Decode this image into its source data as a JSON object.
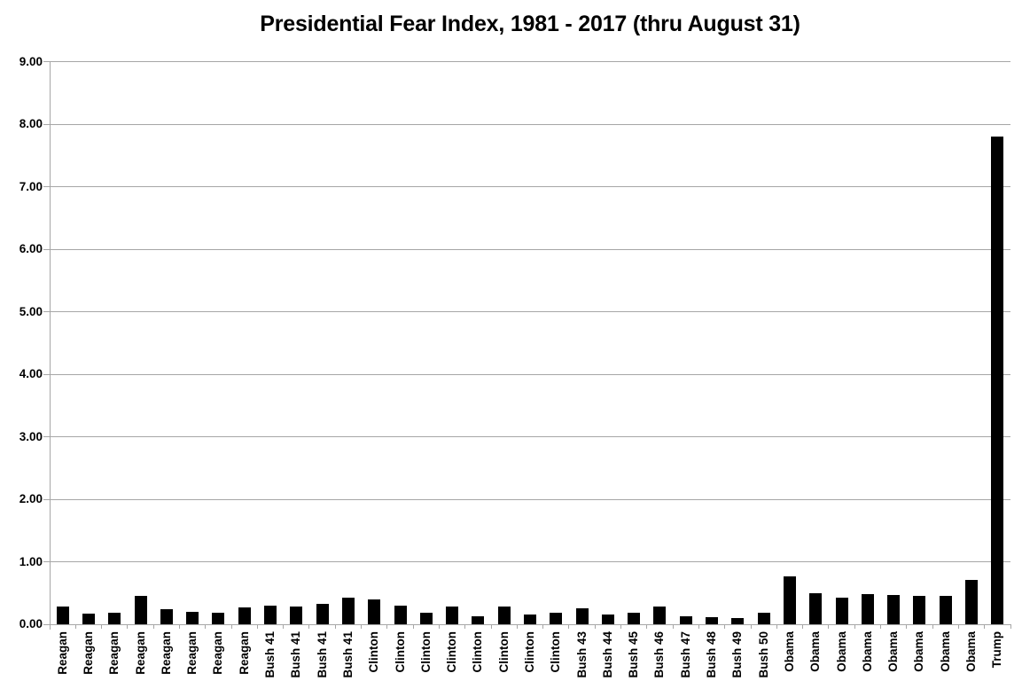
{
  "chart_data": {
    "type": "bar",
    "title": "Presidential Fear Index, 1981 - 2017 (thru August 31)",
    "categories": [
      "Reagan",
      "Reagan",
      "Reagan",
      "Reagan",
      "Reagan",
      "Reagan",
      "Reagan",
      "Reagan",
      "Bush 41",
      "Bush 41",
      "Bush 41",
      "Bush 41",
      "Clinton",
      "Clinton",
      "Clinton",
      "Clinton",
      "Clinton",
      "Clinton",
      "Clinton",
      "Clinton",
      "Bush 43",
      "Bush 44",
      "Bush 45",
      "Bush 46",
      "Bush 47",
      "Bush 48",
      "Bush 49",
      "Bush 50",
      "Obama",
      "Obama",
      "Obama",
      "Obama",
      "Obama",
      "Obama",
      "Obama",
      "Obama",
      "Trump"
    ],
    "values": [
      0.29,
      0.17,
      0.19,
      0.45,
      0.24,
      0.2,
      0.19,
      0.27,
      0.3,
      0.29,
      0.33,
      0.43,
      0.4,
      0.3,
      0.19,
      0.29,
      0.13,
      0.28,
      0.16,
      0.18,
      0.26,
      0.16,
      0.19,
      0.28,
      0.13,
      0.11,
      0.1,
      0.19,
      0.77,
      0.5,
      0.42,
      0.48,
      0.47,
      0.46,
      0.46,
      0.71,
      7.8
    ],
    "xlabel": "",
    "ylabel": "",
    "ylim": [
      0,
      9
    ],
    "ytick_labels": [
      "0.00",
      "1.00",
      "2.00",
      "3.00",
      "4.00",
      "5.00",
      "6.00",
      "7.00",
      "8.00",
      "9.00"
    ],
    "grid": "horizontal",
    "legend": "none",
    "bar_color": "#000000",
    "gridline_color": "#a6a6a6",
    "axis_color": "#a6a6a6",
    "background_color": "#ffffff",
    "text_color": "#000000"
  }
}
